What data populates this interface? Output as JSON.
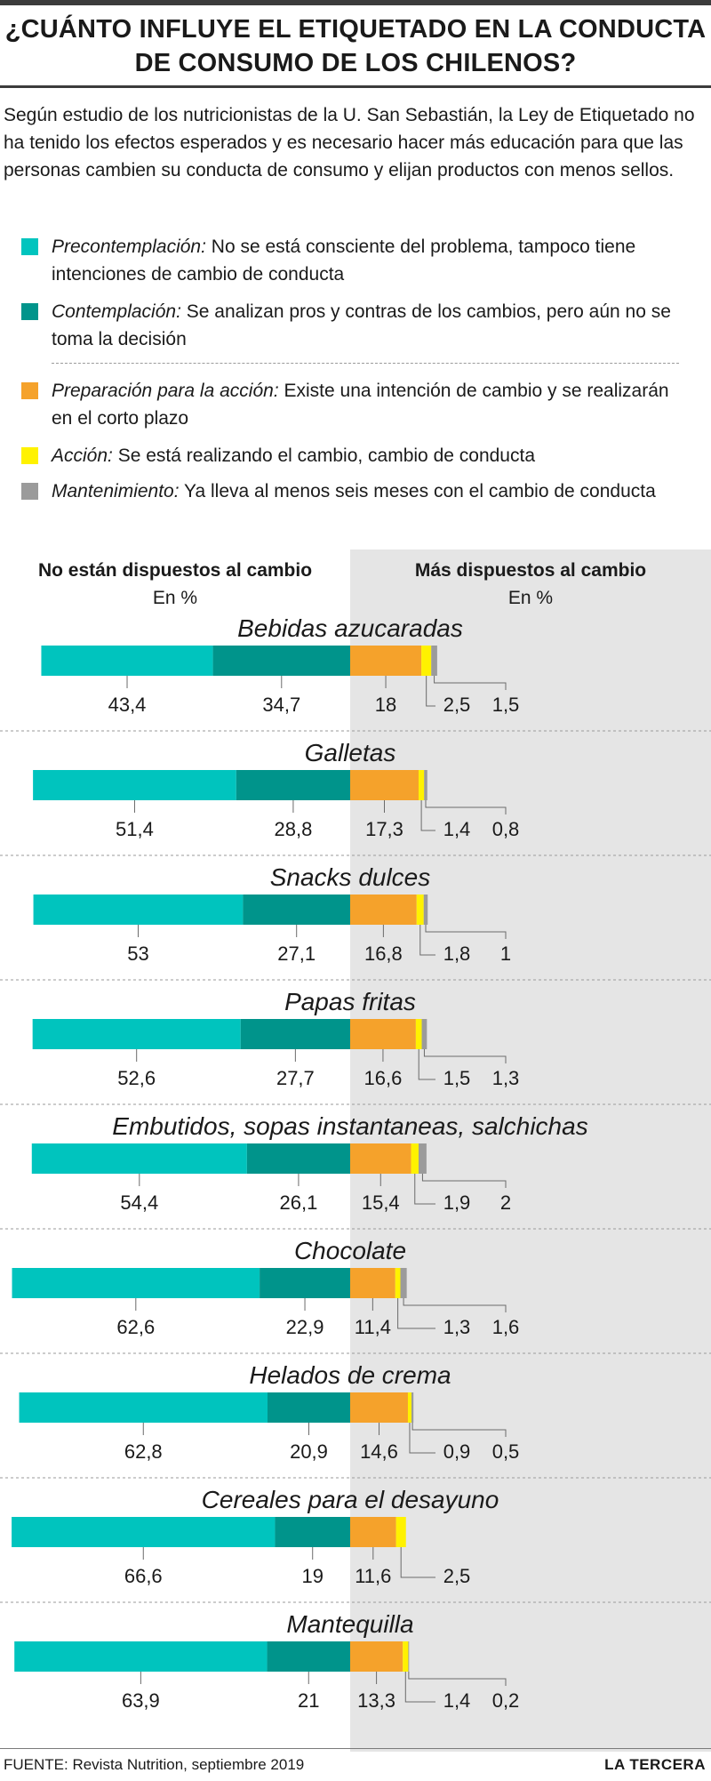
{
  "title": "¿CUÁNTO INFLUYE EL ETIQUETADO EN LA CONDUCTA DE CONSUMO DE LOS CHILENOS?",
  "intro": "Según estudio de los nutricionistas de la U. San Sebastián, la Ley de Etiquetado no ha tenido los efectos esperados y es necesario hacer más educación para que las personas cambien su conducta de consumo y elijan productos con menos sellos.",
  "legend": [
    {
      "term": "Precontemplación:",
      "desc": "No se está consciente del problema, tampoco tiene intenciones de cambio de conducta",
      "color": "#00c4be"
    },
    {
      "term": "Contemplación:",
      "desc": "Se analizan pros y contras de los cambios, pero aún no se toma la decisión",
      "color": "#00948b"
    },
    {
      "term": "Preparación para la acción:",
      "desc": "Existe una intención de cambio y se realizarán en el corto plazo",
      "color": "#f5a22b"
    },
    {
      "term": "Acción:",
      "desc": "Se está realizando el cambio, cambio de conducta",
      "color": "#fff200"
    },
    {
      "term": "Mantenimiento:",
      "desc": "Ya lleva al menos seis meses con el cambio de conducta",
      "color": "#9b9b9b"
    }
  ],
  "column_left": {
    "heading": "No están dispuestos al cambio",
    "unit": "En %"
  },
  "column_right": {
    "heading": "Más dispuestos al cambio",
    "unit": "En %"
  },
  "chart_data": {
    "type": "bar",
    "orientation": "horizontal-stacked-diverging",
    "unit": "%",
    "series_colors": [
      "#00c4be",
      "#00948b",
      "#f5a22b",
      "#fff200",
      "#9b9b9b"
    ],
    "categories": [
      "Bebidas azucaradas",
      "Galletas",
      "Snacks dulces",
      "Papas fritas",
      "Embutidos, sopas instantaneas, salchichas",
      "Chocolate",
      "Helados de crema",
      "Cereales para el desayuno",
      "Mantequilla"
    ],
    "values": [
      [
        43.4,
        34.7,
        18,
        2.5,
        1.5
      ],
      [
        51.4,
        28.8,
        17.3,
        1.4,
        0.8
      ],
      [
        53,
        27.1,
        16.8,
        1.8,
        1
      ],
      [
        52.6,
        27.7,
        16.6,
        1.5,
        1.3
      ],
      [
        54.4,
        26.1,
        15.4,
        1.9,
        2
      ],
      [
        62.6,
        22.9,
        11.4,
        1.3,
        1.6
      ],
      [
        62.8,
        20.9,
        14.6,
        0.9,
        0.5
      ],
      [
        66.6,
        19,
        11.6,
        2.5,
        null
      ],
      [
        63.9,
        21,
        13.3,
        1.4,
        0.2
      ]
    ],
    "value_labels": [
      [
        "43,4",
        "34,7",
        "18",
        "2,5",
        "1,5"
      ],
      [
        "51,4",
        "28,8",
        "17,3",
        "1,4",
        "0,8"
      ],
      [
        "53",
        "27,1",
        "16,8",
        "1,8",
        "1"
      ],
      [
        "52,6",
        "27,7",
        "16,6",
        "1,5",
        "1,3"
      ],
      [
        "54,4",
        "26,1",
        "15,4",
        "1,9",
        "2"
      ],
      [
        "62,6",
        "22,9",
        "11,4",
        "1,3",
        "1,6"
      ],
      [
        "62,8",
        "20,9",
        "14,6",
        "0,9",
        "0,5"
      ],
      [
        "66,6",
        "19",
        "11,6",
        "2,5",
        ""
      ],
      [
        "63,9",
        "21",
        "13,3",
        "1,4",
        "0,2"
      ]
    ]
  },
  "footer": {
    "source": "FUENTE: Revista Nutrition, septiembre 2019",
    "brand": "LA TERCERA"
  }
}
